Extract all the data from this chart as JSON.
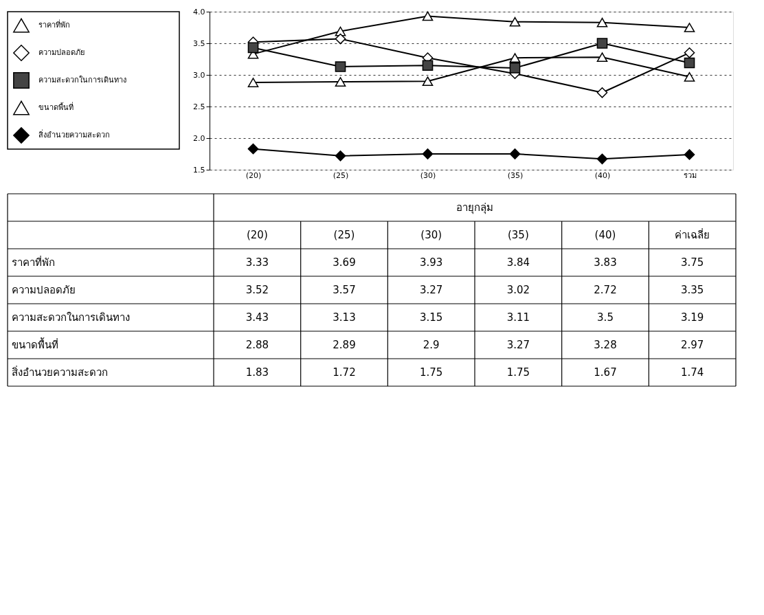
{
  "chart_data": {
    "type": "line",
    "categories": [
      "(20)",
      "(25)",
      "(30)",
      "(35)",
      "(40)",
      "รวม"
    ],
    "series": [
      {
        "name": "ราคาที่พัก",
        "color": "#ffffff",
        "marker": "triangle",
        "values": [
          3.33,
          3.69,
          3.93,
          3.84,
          3.83,
          3.75
        ]
      },
      {
        "name": "ความปลอดภัย",
        "color": "#ffffff",
        "marker": "diamond",
        "values": [
          3.52,
          3.57,
          3.27,
          3.02,
          2.72,
          3.35
        ]
      },
      {
        "name": "ความสะดวกในการเดินทาง",
        "color": "#444444",
        "marker": "square",
        "values": [
          3.43,
          3.13,
          3.15,
          3.11,
          3.5,
          3.19
        ]
      },
      {
        "name": "ขนาดพื้นที่",
        "color": "#ffffff",
        "marker": "triangle",
        "values": [
          2.88,
          2.89,
          2.9,
          3.27,
          3.28,
          2.97
        ]
      },
      {
        "name": "สิ่งอำนวยความสะดวก",
        "color": "#000000",
        "marker": "diamond",
        "values": [
          1.83,
          1.72,
          1.75,
          1.75,
          1.67,
          1.74
        ]
      }
    ],
    "ylim": [
      1.5,
      4.0
    ],
    "yticks": [
      1.5,
      {
        "value": 2,
        "label": "2.0"
      },
      2.5,
      {
        "value": 3,
        "label": "3.0"
      },
      3.5,
      {
        "value": 4,
        "label": "4.0"
      }
    ],
    "grid": "y",
    "legend": "left",
    "line_style": "solid",
    "data_labels": true,
    "annotations": [
      "อายุกลุ่ม",
      "ค่าเฉลี่ย"
    ]
  }
}
